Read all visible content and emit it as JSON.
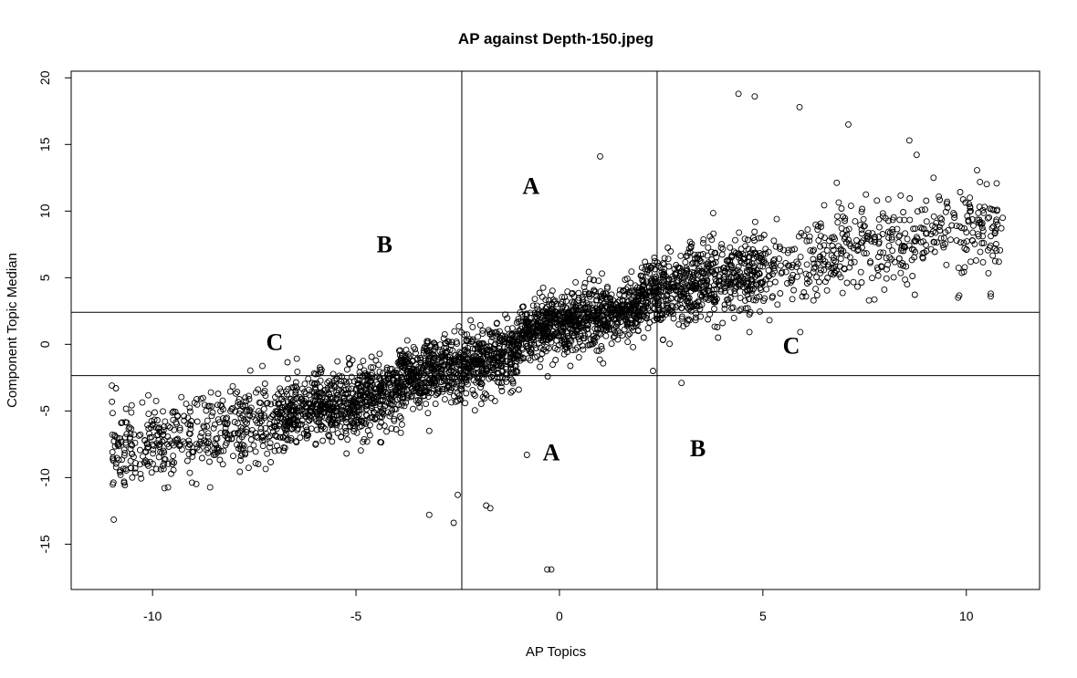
{
  "chart_data": {
    "type": "scatter",
    "title": "AP against Depth-150.jpeg",
    "xlabel": "AP Topics",
    "ylabel": "Component Topic Median",
    "xlim": [
      -12,
      11.8
    ],
    "ylim": [
      -18.4,
      20.5
    ],
    "xticks": [
      -10,
      -5,
      0,
      5,
      10
    ],
    "yticks": [
      -15,
      -10,
      -5,
      0,
      5,
      10,
      15,
      20
    ],
    "xtick_labels": [
      "-10",
      "-5",
      "0",
      "5",
      "10"
    ],
    "ytick_labels": [
      "-15",
      "-10",
      "-5",
      "0",
      "5",
      "10",
      "15",
      "20"
    ],
    "grid": false,
    "marker": "open circle",
    "point_color": "#000000",
    "reference_lines": {
      "vertical": [
        -2.4,
        2.4
      ],
      "horizontal": [
        -2.35,
        2.4
      ]
    },
    "region_labels": [
      {
        "text": "A",
        "x": -0.7,
        "y": 11.7
      },
      {
        "text": "B",
        "x": -4.3,
        "y": 7.3
      },
      {
        "text": "C",
        "x": -7.0,
        "y": 0.0
      },
      {
        "text": "C",
        "x": 5.7,
        "y": -0.3
      },
      {
        "text": "A",
        "x": -0.2,
        "y": -8.3
      },
      {
        "text": "B",
        "x": 3.4,
        "y": -8.0
      }
    ],
    "trend": {
      "slope": 0.95,
      "intercept": 0.8
    },
    "clusters": [
      {
        "x_range": [
          -11,
          -7
        ],
        "y_mean": -6.0,
        "y_spread": 2.6,
        "count": 420
      },
      {
        "x_range": [
          -7,
          -4
        ],
        "y_mean": -4.8,
        "y_spread": 2.4,
        "count": 700
      },
      {
        "x_range": [
          -4,
          -1
        ],
        "y_mean": -1.8,
        "y_spread": 2.2,
        "count": 800
      },
      {
        "x_range": [
          -1,
          2
        ],
        "y_mean": 2.4,
        "y_spread": 2.0,
        "count": 800
      },
      {
        "x_range": [
          2,
          5
        ],
        "y_mean": 5.0,
        "y_spread": 2.6,
        "count": 650
      },
      {
        "x_range": [
          5,
          10.9
        ],
        "y_mean": 6.5,
        "y_spread": 3.0,
        "count": 450
      }
    ],
    "outliers": [
      {
        "x": 1.0,
        "y": 14.1
      },
      {
        "x": 4.4,
        "y": 18.8
      },
      {
        "x": 4.8,
        "y": 18.6
      },
      {
        "x": 5.9,
        "y": 17.8
      },
      {
        "x": 7.1,
        "y": 16.5
      },
      {
        "x": 8.6,
        "y": 15.3
      },
      {
        "x": -0.3,
        "y": -16.9
      },
      {
        "x": -0.2,
        "y": -16.9
      },
      {
        "x": -3.2,
        "y": -12.8
      },
      {
        "x": -2.6,
        "y": -13.4
      },
      {
        "x": -1.8,
        "y": -12.1
      },
      {
        "x": -1.7,
        "y": -12.3
      },
      {
        "x": -2.5,
        "y": -11.3
      },
      {
        "x": -0.8,
        "y": -8.3
      },
      {
        "x": -3.2,
        "y": -6.5
      },
      {
        "x": -11.0,
        "y": -3.1
      },
      {
        "x": -10.9,
        "y": -3.3
      },
      {
        "x": -10.8,
        "y": -9.6
      },
      {
        "x": -10.7,
        "y": -10.4
      },
      {
        "x": -10.5,
        "y": -10.0
      },
      {
        "x": 10.8,
        "y": 6.2
      },
      {
        "x": 10.7,
        "y": 7.2
      },
      {
        "x": 10.6,
        "y": 3.8
      },
      {
        "x": 10.6,
        "y": 3.6
      },
      {
        "x": 9.8,
        "y": 3.5
      },
      {
        "x": 10.0,
        "y": 7.1
      },
      {
        "x": 3.0,
        "y": -2.9
      },
      {
        "x": 2.3,
        "y": -2.0
      },
      {
        "x": -1.0,
        "y": -3.4
      },
      {
        "x": 3.9,
        "y": 0.5
      }
    ]
  }
}
